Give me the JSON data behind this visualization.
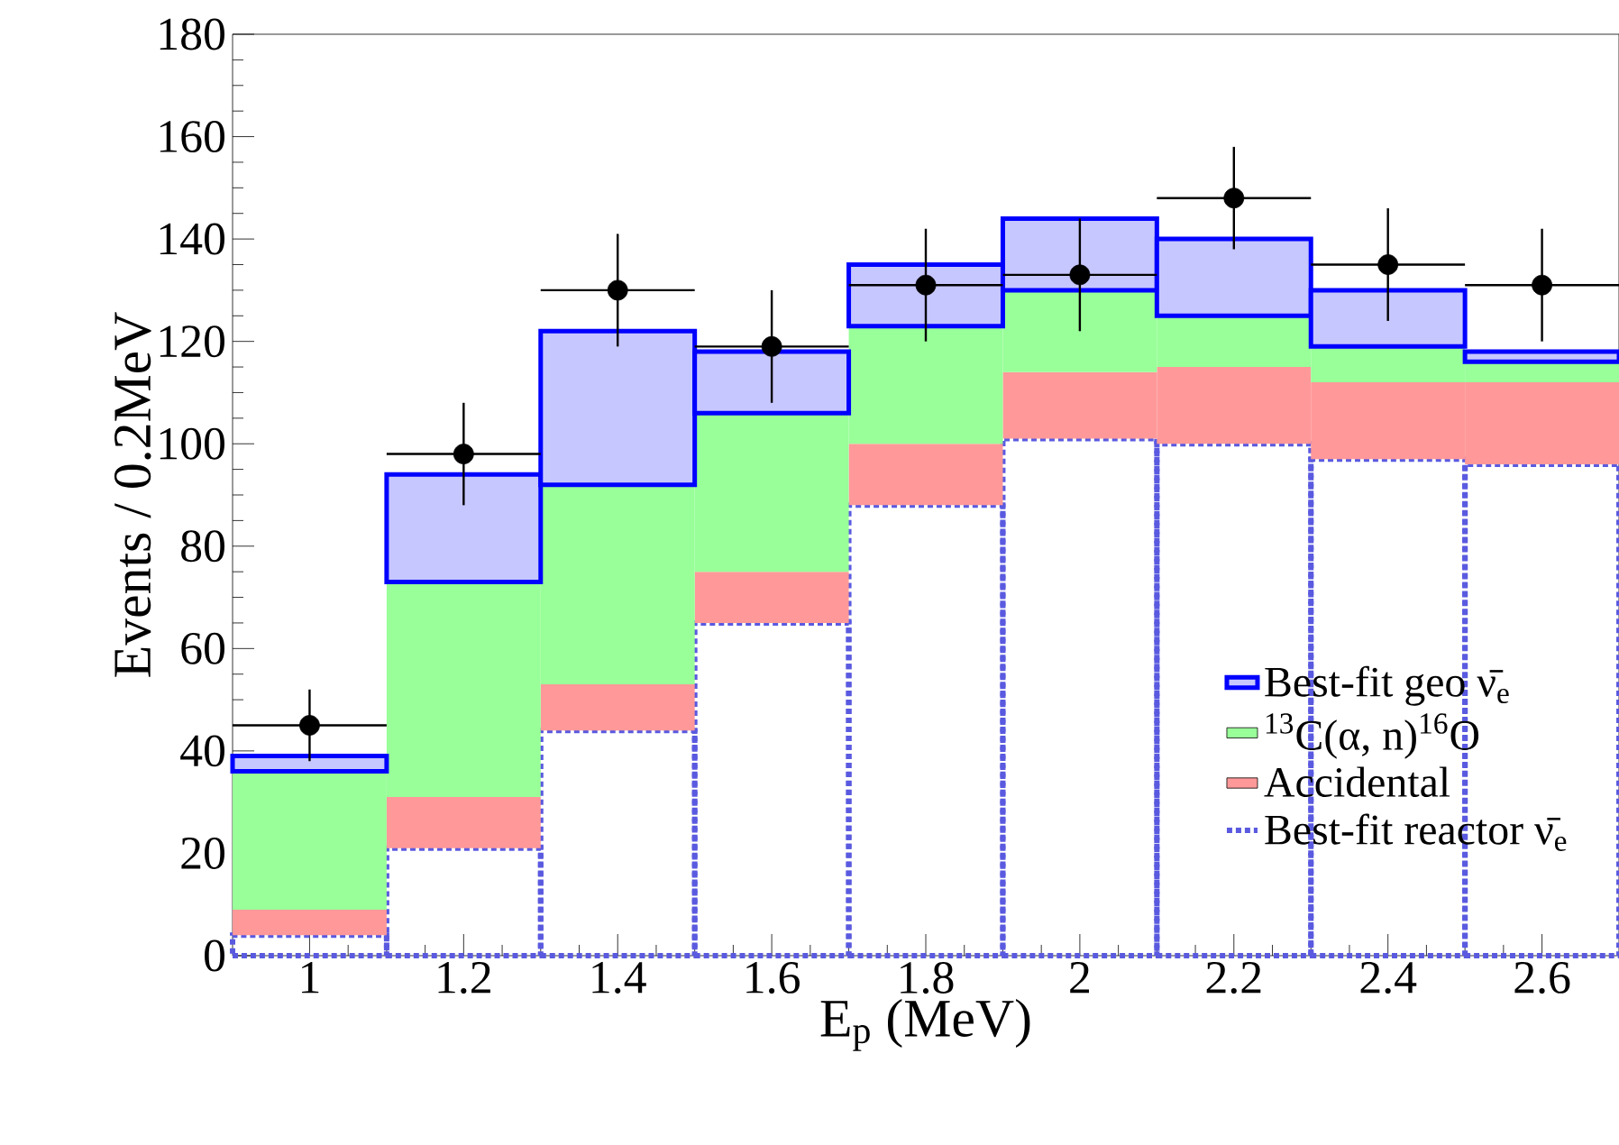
{
  "chart_data": {
    "type": "bar",
    "xlabel": "E$_{p}$ (MeV)",
    "ylabel": "Events / 0.2MeV",
    "x": [
      1,
      1.2,
      1.4,
      1.6,
      1.8,
      2,
      2.2,
      2.4,
      2.6
    ],
    "stacked": true,
    "legend": "bottom right",
    "grid": false,
    "xlim": [
      0.9,
      2.7
    ],
    "xticks": [
      1,
      1.2,
      1.4,
      1.6,
      1.8,
      2,
      2.2,
      2.4,
      2.6
    ],
    "ylim": [
      0,
      180
    ],
    "yticks": [
      0,
      20,
      40,
      60,
      80,
      100,
      120,
      140,
      160,
      180
    ],
    "series": [
      {
        "name": "Best-fit reactor ν̄$_{e}$",
        "color": "#5a5ae0",
        "line_style": "dashed",
        "values": [
          4,
          21,
          44,
          65,
          88,
          101,
          100,
          97,
          96
        ]
      },
      {
        "name": "Accidental",
        "color": "#ff9999",
        "values": [
          5,
          10,
          9,
          10,
          12,
          13,
          15,
          15,
          16
        ]
      },
      {
        "name": "$^{13}$C(α, n)$^{16}$O",
        "color": "#99ff99",
        "values": [
          27,
          42,
          39,
          31,
          23,
          16,
          10,
          7,
          4
        ]
      },
      {
        "name": "Best-fit geo ν̄$_{e}$",
        "color": "#0000ff",
        "values": [
          3,
          21,
          30,
          12,
          12,
          14,
          15,
          11,
          2
        ]
      },
      {
        "type": "scatter",
        "color": "#000000",
        "marker": "circle",
        "x": [
          1,
          1.2,
          1.4,
          1.6,
          1.8,
          2,
          2.2,
          2.4,
          2.6
        ],
        "values": [
          45,
          98,
          130,
          119,
          131,
          133,
          148,
          135,
          131
        ],
        "errors": [
          7,
          10,
          11,
          11,
          11,
          11,
          10,
          11,
          11
        ],
        "xerrors": [
          0.1,
          0.1,
          0.1,
          0.1,
          0.1,
          0.1,
          0.1,
          0.1,
          0.1
        ]
      }
    ]
  }
}
